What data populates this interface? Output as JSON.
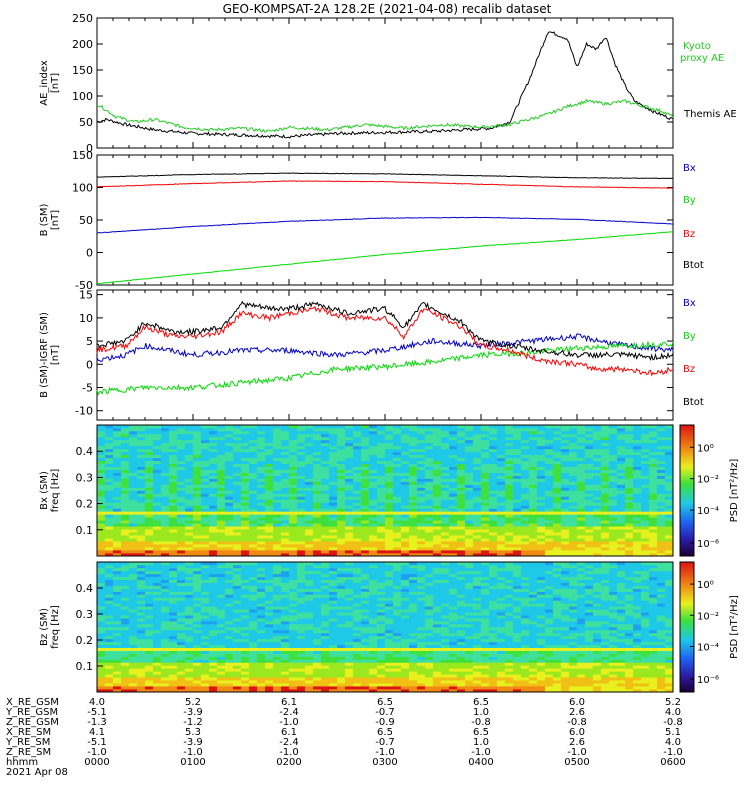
{
  "title": "GEO-KOMPSAT-2A 128.2E (2021-04-08) recalib dataset",
  "colors": {
    "black": "#000000",
    "red": "#ff0000",
    "green": "#00dd00",
    "blue": "#0000cc",
    "kyoto": "#22cc22"
  },
  "chart_data": [
    {
      "type": "line",
      "ylabel_line1": "AE_index",
      "ylabel_line2": "[nT]",
      "ylim": [
        0,
        250
      ],
      "yticks": [
        "0",
        "50",
        "100",
        "150",
        "200",
        "250"
      ],
      "legend": [
        {
          "label": "Kyoto",
          "color": "#22cc22"
        },
        {
          "label": "proxy AE",
          "color": "#22cc22"
        },
        {
          "label": "Themis AE",
          "color": "#000000"
        }
      ],
      "series": [
        {
          "name": "Themis AE",
          "color": "#000000",
          "x": [
            0,
            0.1,
            0.3,
            0.6,
            1.0,
            1.5,
            2.0,
            2.5,
            3.0,
            3.5,
            3.8,
            4.1,
            4.3,
            4.5,
            4.7,
            4.9,
            5.0,
            5.1,
            5.2,
            5.3,
            5.4,
            5.5,
            5.6,
            5.8,
            6.0
          ],
          "y": [
            50,
            55,
            45,
            35,
            28,
            25,
            22,
            28,
            30,
            32,
            35,
            38,
            50,
            130,
            225,
            210,
            155,
            200,
            190,
            215,
            160,
            120,
            90,
            70,
            55
          ]
        },
        {
          "name": "Kyoto proxy AE",
          "color": "#22cc22",
          "x": [
            0,
            0.2,
            0.4,
            0.6,
            0.9,
            1.2,
            1.5,
            1.8,
            2.0,
            2.4,
            2.8,
            3.2,
            3.6,
            4.0,
            4.3,
            4.5,
            4.7,
            4.9,
            5.1,
            5.3,
            5.5,
            5.7,
            5.9,
            6.0
          ],
          "y": [
            85,
            60,
            50,
            55,
            40,
            35,
            38,
            32,
            40,
            35,
            45,
            38,
            45,
            40,
            45,
            55,
            65,
            80,
            90,
            85,
            90,
            80,
            70,
            60
          ]
        }
      ]
    },
    {
      "type": "line",
      "ylabel_line1": "B (SM)",
      "ylabel_line2": "[nT]",
      "ylim": [
        -50,
        150
      ],
      "yticks": [
        "-50",
        "0",
        "50",
        "100",
        "150"
      ],
      "legend": [
        {
          "label": "Bx",
          "color": "#0000cc"
        },
        {
          "label": "By",
          "color": "#00dd00"
        },
        {
          "label": "Bz",
          "color": "#ff0000"
        },
        {
          "label": "Btot",
          "color": "#000000"
        }
      ],
      "series": [
        {
          "name": "Bx",
          "color": "#0000cc",
          "x": [
            0,
            1,
            2,
            3,
            4,
            5,
            6
          ],
          "y": [
            30,
            40,
            48,
            53,
            54,
            51,
            44
          ]
        },
        {
          "name": "By",
          "color": "#00dd00",
          "x": [
            0,
            1,
            2,
            3,
            4,
            5,
            6
          ],
          "y": [
            -48,
            -33,
            -18,
            -3,
            10,
            20,
            32
          ]
        },
        {
          "name": "Bz",
          "color": "#ff0000",
          "x": [
            0,
            1,
            2,
            3,
            4,
            5,
            6
          ],
          "y": [
            101,
            106,
            110,
            109,
            105,
            101,
            99
          ]
        },
        {
          "name": "Btot",
          "color": "#000000",
          "x": [
            0,
            1,
            2,
            3,
            4,
            5,
            6
          ],
          "y": [
            116,
            120,
            122,
            121,
            118,
            115,
            114
          ]
        }
      ]
    },
    {
      "type": "line",
      "ylabel_line1": "B (SM)-IGRF (SM)",
      "ylabel_line2": "[nT]",
      "ylim": [
        -12,
        16
      ],
      "yticks": [
        "-10",
        "-5",
        "0",
        "5",
        "10",
        "15"
      ],
      "legend": [
        {
          "label": "Bx",
          "color": "#0000cc"
        },
        {
          "label": "By",
          "color": "#00dd00"
        },
        {
          "label": "Bz",
          "color": "#ff0000"
        },
        {
          "label": "Btot",
          "color": "#000000"
        }
      ],
      "series": [
        {
          "name": "Bx",
          "color": "#0000cc",
          "x": [
            0,
            0.3,
            0.5,
            1.0,
            1.5,
            2.0,
            2.5,
            3.0,
            3.5,
            4.0,
            4.5,
            5.0,
            5.5,
            6.0
          ],
          "y": [
            1,
            2,
            4,
            2,
            3,
            3,
            2,
            3,
            5,
            4,
            5,
            6,
            4,
            3
          ]
        },
        {
          "name": "By",
          "color": "#00dd00",
          "x": [
            0,
            0.5,
            1.0,
            1.5,
            2.0,
            2.5,
            3.0,
            3.5,
            4.0,
            4.5,
            5.0,
            5.5,
            6.0
          ],
          "y": [
            -6,
            -5,
            -5,
            -4,
            -3,
            -1,
            -0.5,
            0.5,
            2,
            2.5,
            3.5,
            4,
            4.5
          ]
        },
        {
          "name": "Bz",
          "color": "#ff0000",
          "x": [
            0,
            0.3,
            0.5,
            0.8,
            1.0,
            1.3,
            1.5,
            1.8,
            2.0,
            2.3,
            2.6,
            3.0,
            3.2,
            3.4,
            3.6,
            3.8,
            4.0,
            4.3,
            4.6,
            5.0,
            5.2,
            5.5,
            5.8,
            6.0
          ],
          "y": [
            3,
            4,
            8,
            6,
            6,
            7,
            11,
            10,
            11,
            12,
            10,
            10,
            6,
            12,
            10,
            8,
            4,
            3,
            1,
            0,
            -1,
            -1,
            -2,
            -1
          ]
        },
        {
          "name": "Btot",
          "color": "#000000",
          "x": [
            0,
            0.3,
            0.5,
            0.8,
            1.0,
            1.3,
            1.5,
            1.8,
            2.0,
            2.3,
            2.6,
            3.0,
            3.2,
            3.4,
            3.6,
            3.8,
            4.0,
            4.3,
            4.6,
            5.0,
            5.2,
            5.5,
            5.8,
            6.0
          ],
          "y": [
            4,
            5,
            9,
            7,
            7,
            8,
            13,
            12,
            12,
            13,
            11,
            12,
            8,
            13,
            11,
            9,
            5,
            4,
            3,
            2,
            2,
            2,
            1.5,
            2
          ]
        }
      ]
    },
    {
      "type": "heatmap",
      "ylabel_line1": "Bx (SM)",
      "ylabel_line2": "freq [Hz]",
      "ylim": [
        0,
        0.5
      ],
      "yticks": [
        "0.1",
        "0.2",
        "0.3",
        "0.4"
      ],
      "colorbar_label": "PSD [nT²/Hz]",
      "colorbar_ticks": [
        "10⁰",
        "10⁻²",
        "10⁻⁴",
        "10⁻⁶"
      ]
    },
    {
      "type": "heatmap",
      "ylabel_line1": "Bz (SM)",
      "ylabel_line2": "freq [Hz]",
      "ylim": [
        0,
        0.5
      ],
      "yticks": [
        "0.1",
        "0.2",
        "0.3",
        "0.4"
      ],
      "colorbar_label": "PSD [nT²/Hz]",
      "colorbar_ticks": [
        "10⁰",
        "10⁻²",
        "10⁻⁴",
        "10⁻⁶"
      ]
    }
  ],
  "ephemeris": {
    "rows": [
      {
        "label": "X_RE_GSM",
        "values": [
          "4.0",
          "5.2",
          "6.1",
          "6.5",
          "6.5",
          "6.0",
          "5.2"
        ]
      },
      {
        "label": "Y_RE_GSM",
        "values": [
          "-5.1",
          "-3.9",
          "-2.4",
          "-0.7",
          "1.0",
          "2.6",
          "4.0"
        ]
      },
      {
        "label": "Z_RE_GSM",
        "values": [
          "-1.3",
          "-1.2",
          "-1.0",
          "-0.9",
          "-0.8",
          "-0.8",
          "-0.8"
        ]
      },
      {
        "label": "X_RE_SM",
        "values": [
          "4.1",
          "5.3",
          "6.1",
          "6.5",
          "6.5",
          "6.0",
          "5.1"
        ]
      },
      {
        "label": "Y_RE_SM",
        "values": [
          "-5.1",
          "-3.9",
          "-2.4",
          "-0.7",
          "1.0",
          "2.6",
          "4.0"
        ]
      },
      {
        "label": "Z_RE_SM",
        "values": [
          "-1.0",
          "-1.0",
          "-1.0",
          "-1.0",
          "-1.0",
          "-1.0",
          "-1.0"
        ]
      },
      {
        "label": "hhmm",
        "values": [
          "0000",
          "0100",
          "0200",
          "0300",
          "0400",
          "0500",
          "0600"
        ]
      }
    ],
    "date": "2021 Apr 08"
  }
}
